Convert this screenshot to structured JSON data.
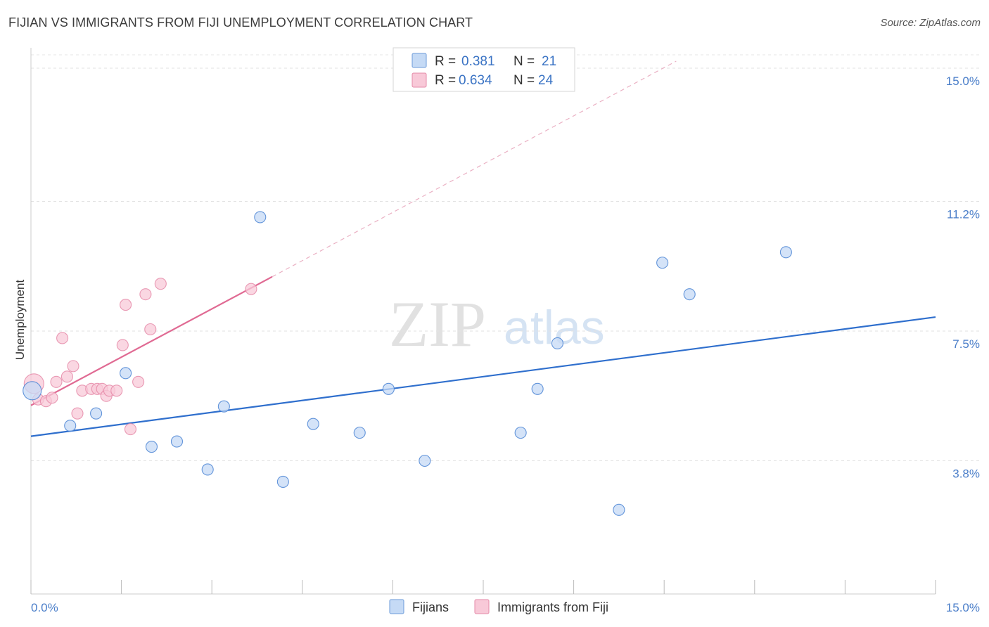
{
  "chart_data": {
    "type": "scatter",
    "title": "FIJIAN VS IMMIGRANTS FROM FIJI UNEMPLOYMENT CORRELATION CHART",
    "source": "Source: ZipAtlas.com",
    "xlabel": "",
    "ylabel": "Unemployment",
    "xlim": [
      0,
      15
    ],
    "ylim": [
      0,
      15.6
    ],
    "x_tick_labels": [
      {
        "value": 0,
        "label": "0.0%"
      },
      {
        "value": 15,
        "label": "15.0%"
      }
    ],
    "y_tick_labels": [
      {
        "value": 3.8,
        "label": "3.8%"
      },
      {
        "value": 7.5,
        "label": "7.5%"
      },
      {
        "value": 11.2,
        "label": "11.2%"
      },
      {
        "value": 15.0,
        "label": "15.0%"
      }
    ],
    "legend": [
      {
        "r_label": "R =",
        "r_value": "0.381",
        "n_label": "N =",
        "n_value": "21"
      },
      {
        "r_label": "R =",
        "r_value": "0.634",
        "n_label": "N =",
        "n_value": "24"
      }
    ],
    "watermark": {
      "zip": "ZIP",
      "atlas": "atlas"
    },
    "series": [
      {
        "name": "Fijians",
        "color": "#4a84d4",
        "fill": "#c5daf5",
        "points": [
          [
            0.02,
            5.8
          ],
          [
            0.65,
            4.8
          ],
          [
            1.08,
            5.15
          ],
          [
            1.57,
            6.3
          ],
          [
            2.0,
            4.2
          ],
          [
            2.42,
            4.35
          ],
          [
            2.93,
            3.55
          ],
          [
            3.2,
            5.35
          ],
          [
            3.8,
            10.75
          ],
          [
            4.18,
            3.2
          ],
          [
            4.68,
            4.85
          ],
          [
            5.45,
            4.6
          ],
          [
            5.93,
            5.85
          ],
          [
            6.53,
            3.8
          ],
          [
            8.12,
            4.6
          ],
          [
            8.4,
            5.85
          ],
          [
            8.73,
            7.15
          ],
          [
            9.75,
            2.4
          ],
          [
            10.47,
            9.45
          ],
          [
            10.92,
            8.55
          ],
          [
            12.52,
            9.75
          ]
        ],
        "trend": {
          "x": [
            0,
            15
          ],
          "y": [
            4.5,
            7.9
          ],
          "color": "#2f6fcd",
          "dashed": false
        }
      },
      {
        "name": "Immigrants from Fiji",
        "color": "#e58aa8",
        "fill": "#f8c9d8",
        "points": [
          [
            0.05,
            6.0
          ],
          [
            0.12,
            5.55
          ],
          [
            0.25,
            5.5
          ],
          [
            0.35,
            5.6
          ],
          [
            0.42,
            6.05
          ],
          [
            0.52,
            7.3
          ],
          [
            0.6,
            6.2
          ],
          [
            0.7,
            6.5
          ],
          [
            0.77,
            5.15
          ],
          [
            0.85,
            5.8
          ],
          [
            1.0,
            5.85
          ],
          [
            1.1,
            5.85
          ],
          [
            1.18,
            5.85
          ],
          [
            1.25,
            5.65
          ],
          [
            1.3,
            5.8
          ],
          [
            1.42,
            5.8
          ],
          [
            1.52,
            7.1
          ],
          [
            1.57,
            8.25
          ],
          [
            1.65,
            4.7
          ],
          [
            1.78,
            6.05
          ],
          [
            1.9,
            8.55
          ],
          [
            1.98,
            7.55
          ],
          [
            2.15,
            8.85
          ],
          [
            3.65,
            8.7
          ]
        ],
        "trend": {
          "x": [
            0,
            4.0
          ],
          "y": [
            5.38,
            9.05
          ],
          "color": "#e06a93",
          "dashed": false
        },
        "trend_extension": {
          "x": [
            4.0,
            10.7
          ],
          "y": [
            9.05,
            15.2
          ],
          "color": "#eab0c3",
          "dashed": true
        }
      }
    ]
  }
}
